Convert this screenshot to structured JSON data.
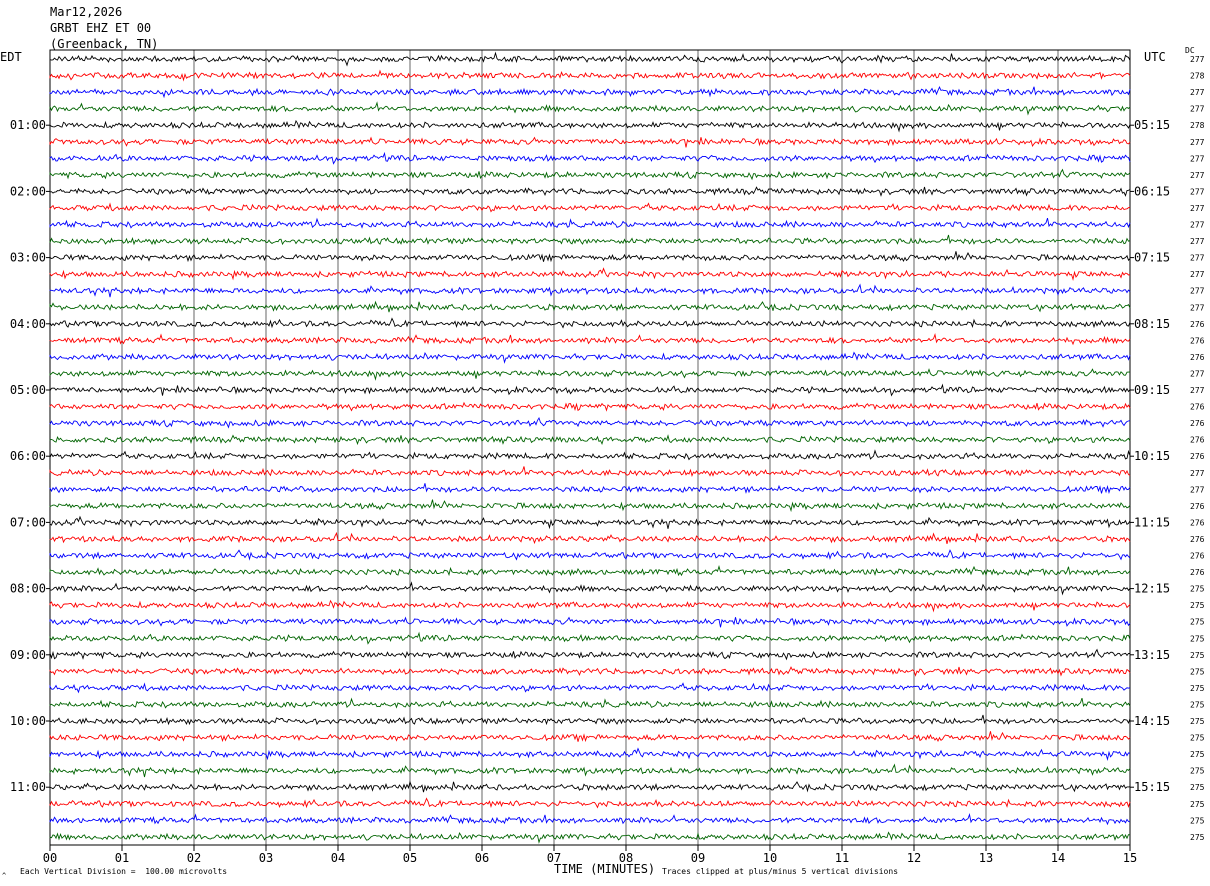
{
  "header": {
    "date": "Mar12,2026",
    "station": "GRBT EHZ ET 00",
    "location": "(Greenback, TN)"
  },
  "chart_data": {
    "type": "line",
    "left_timezone": "EDT",
    "right_timezone": "UTC",
    "dc_label": "DC",
    "xlabel": "TIME (MINUTES)",
    "x_ticks": [
      "00",
      "01",
      "02",
      "03",
      "04",
      "05",
      "06",
      "07",
      "08",
      "09",
      "10",
      "11",
      "12",
      "13",
      "14",
      "15"
    ],
    "xlim": [
      0,
      15
    ],
    "grid": true,
    "trace_colors": [
      "#000000",
      "#ff0000",
      "#0000ff",
      "#006400"
    ],
    "left_hour_labels": [
      "01:00",
      "02:00",
      "03:00",
      "04:00",
      "05:00",
      "06:00",
      "07:00",
      "08:00",
      "09:00",
      "10:00",
      "11:00"
    ],
    "right_hour_labels": [
      "05:15",
      "06:15",
      "07:15",
      "08:15",
      "09:15",
      "10:15",
      "11:15",
      "12:15",
      "13:15",
      "14:15",
      "15:15"
    ],
    "dc_offsets": [
      "277",
      "278",
      "277",
      "277",
      "278",
      "277",
      "277",
      "277",
      "277",
      "277",
      "277",
      "277",
      "277",
      "277",
      "277",
      "277",
      "276",
      "276",
      "276",
      "277",
      "277",
      "276",
      "276",
      "276",
      "276",
      "277",
      "277",
      "276",
      "276",
      "276",
      "276",
      "276",
      "275",
      "275",
      "275",
      "275",
      "275",
      "275",
      "275",
      "275",
      "275",
      "275",
      "275",
      "275",
      "275",
      "275",
      "275",
      "275"
    ],
    "footer_scale": "Each Vertical Division =  100.00 microvolts",
    "footer_clip": "Traces clipped at plus/minus 5 vertical divisions"
  }
}
